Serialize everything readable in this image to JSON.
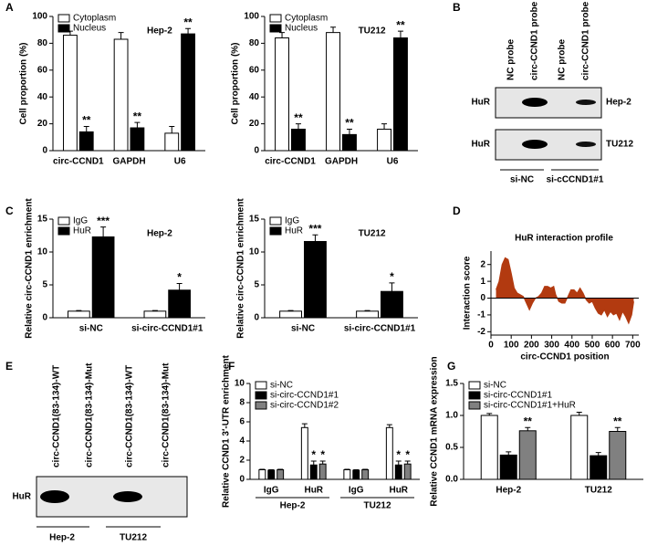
{
  "panel_labels": [
    "A",
    "B",
    "C",
    "D",
    "E",
    "F",
    "G"
  ],
  "blot_b": {
    "lanes": [
      "NC probe",
      "circ-CCND1 probe",
      "NC probe",
      "circ-CCND1 probe"
    ],
    "rows": [
      "HuR",
      "HuR"
    ],
    "cell_lines": [
      "Hep-2",
      "TU212"
    ],
    "groups": [
      "si-NC",
      "si-cCCND1#1"
    ]
  },
  "blot_e": {
    "lanes": [
      "circ-CCND1(83-134)-WT",
      "circ-CCND1(83-134)-Mut",
      "circ-CCND1(83-134)-WT",
      "circ-CCND1(83-134)-Mut"
    ],
    "rows": [
      "HuR"
    ],
    "groups": [
      "Hep-2",
      "TU212"
    ]
  },
  "chart_data": [
    {
      "type": "bar",
      "title": "Hep-2",
      "y_label": "Cell proportion (%)",
      "categories": [
        "circ-CCND1",
        "GAPDH",
        "U6"
      ],
      "series": [
        {
          "name": "Cytoplasm",
          "color": "#ffffff",
          "values": [
            86,
            83,
            13
          ],
          "errors": [
            3,
            5,
            5
          ]
        },
        {
          "name": "Nucleus",
          "color": "#000000",
          "values": [
            14,
            17,
            87
          ],
          "errors": [
            4,
            4,
            4
          ],
          "annotations": [
            "**",
            "**",
            "**"
          ]
        }
      ],
      "ylim": [
        0,
        100
      ],
      "yticks": [
        0,
        20,
        40,
        60,
        80,
        100
      ],
      "legend": "upper left"
    },
    {
      "type": "bar",
      "title": "TU212",
      "y_label": "Cell proportion (%)",
      "categories": [
        "circ-CCND1",
        "GAPDH",
        "U6"
      ],
      "series": [
        {
          "name": "Cytoplasm",
          "color": "#ffffff",
          "values": [
            84,
            88,
            16
          ],
          "errors": [
            4,
            4,
            4
          ]
        },
        {
          "name": "Nucleus",
          "color": "#000000",
          "values": [
            16,
            12,
            84
          ],
          "errors": [
            4,
            4,
            5
          ],
          "annotations": [
            "**",
            "**",
            "**"
          ]
        }
      ],
      "ylim": [
        0,
        100
      ],
      "yticks": [
        0,
        20,
        40,
        60,
        80,
        100
      ],
      "legend": "upper left"
    },
    {
      "type": "bar",
      "title": "Hep-2",
      "y_label": "Relative circ-CCND1 enrichment",
      "categories": [
        "si-NC",
        "si-circ-CCND1#1"
      ],
      "series": [
        {
          "name": "IgG",
          "color": "#ffffff",
          "values": [
            1,
            1
          ],
          "errors": [
            0.1,
            0.1
          ]
        },
        {
          "name": "HuR",
          "color": "#000000",
          "values": [
            12.3,
            4.2
          ],
          "errors": [
            1.5,
            1.0
          ],
          "annotations": [
            "***",
            "*"
          ]
        }
      ],
      "ylim": [
        0,
        15
      ],
      "yticks": [
        0,
        5,
        10,
        15
      ],
      "legend": "upper left"
    },
    {
      "type": "bar",
      "title": "TU212",
      "y_label": "Relative circ-CCND1 enrichment",
      "categories": [
        "si-NC",
        "si-circ-CCND1#1"
      ],
      "series": [
        {
          "name": "IgG",
          "color": "#ffffff",
          "values": [
            1,
            1
          ],
          "errors": [
            0.1,
            0.1
          ]
        },
        {
          "name": "HuR",
          "color": "#000000",
          "values": [
            11.6,
            4.0
          ],
          "errors": [
            1.0,
            1.3
          ],
          "annotations": [
            "***",
            "*"
          ]
        }
      ],
      "ylim": [
        0,
        15
      ],
      "yticks": [
        0,
        5,
        10,
        15
      ],
      "legend": "upper left"
    },
    {
      "type": "area",
      "title": "HuR interaction profile",
      "x_label": "circ-CCND1 position",
      "y_label": "Interaction score",
      "color": "#b23a10",
      "x": [
        25,
        40,
        55,
        70,
        85,
        100,
        115,
        130,
        145,
        160,
        175,
        190,
        205,
        220,
        235,
        250,
        265,
        280,
        295,
        310,
        320,
        335,
        350,
        365,
        380,
        395,
        410,
        425,
        440,
        455,
        470,
        485,
        500,
        515,
        530,
        545,
        560,
        575,
        590,
        605,
        620,
        635,
        650,
        665,
        680,
        695,
        705
      ],
      "values": [
        0.5,
        1.0,
        2.0,
        2.4,
        2.3,
        1.5,
        0.6,
        0.3,
        0.2,
        0.1,
        -0.3,
        -0.7,
        -0.3,
        0,
        0.1,
        0.3,
        0.7,
        0.7,
        0.6,
        0.7,
        0.2,
        -0.2,
        -0.3,
        -0.3,
        0.1,
        0.5,
        0.5,
        0.3,
        0.6,
        0.3,
        -0.1,
        -0.3,
        -0.2,
        -0.6,
        -0.9,
        -1.0,
        -0.7,
        -1.1,
        -0.8,
        -1.0,
        -0.9,
        -1.3,
        -0.8,
        -1.1,
        -1.5,
        -1.0,
        -0.2
      ],
      "xlim": [
        0,
        730
      ],
      "xticks": [
        0,
        100,
        200,
        300,
        400,
        500,
        600,
        700
      ],
      "ylim": [
        -2.2,
        2.8
      ],
      "yticks": [
        -2,
        -1,
        0,
        1,
        2
      ]
    },
    {
      "type": "bar",
      "y_label": "Relative CCND1 3′-UTR enrichment",
      "categories": [
        "IgG",
        "HuR",
        "IgG",
        "HuR"
      ],
      "groups": [
        "Hep-2",
        "TU212"
      ],
      "series": [
        {
          "name": "si-NC",
          "color": "#ffffff",
          "values": [
            1.0,
            5.4,
            1.0,
            5.4
          ],
          "errors": [
            0.05,
            0.4,
            0.05,
            0.3
          ]
        },
        {
          "name": "si-circ-CCND1#1",
          "color": "#000000",
          "values": [
            0.95,
            1.5,
            0.95,
            1.5
          ],
          "errors": [
            0.05,
            0.4,
            0.05,
            0.4
          ],
          "annotations": [
            null,
            "*",
            null,
            "*"
          ]
        },
        {
          "name": "si-circ-CCND1#2",
          "color": "#808080",
          "values": [
            1.0,
            1.6,
            1.0,
            1.6
          ],
          "errors": [
            0.05,
            0.3,
            0.05,
            0.3
          ],
          "annotations": [
            null,
            "*",
            null,
            "*"
          ]
        }
      ],
      "ylim": [
        0,
        10
      ],
      "yticks": [
        0,
        2,
        4,
        6,
        8,
        10
      ],
      "legend": "upper left"
    },
    {
      "type": "bar",
      "y_label": "Relative CCND1 mRNA expression",
      "categories": [
        "Hep-2",
        "TU212"
      ],
      "series": [
        {
          "name": "si-NC",
          "color": "#ffffff",
          "values": [
            1.0,
            1.0
          ],
          "errors": [
            0.03,
            0.05
          ]
        },
        {
          "name": "si-circ-CCND1#1",
          "color": "#000000",
          "values": [
            0.38,
            0.37
          ],
          "errors": [
            0.05,
            0.05
          ]
        },
        {
          "name": "si-circ-CCND1#1+HuR",
          "color": "#808080",
          "values": [
            0.76,
            0.75
          ],
          "errors": [
            0.05,
            0.06
          ],
          "annotations": [
            "**",
            "**"
          ]
        }
      ],
      "ylim": [
        0,
        1.5
      ],
      "yticks": [
        {
          "value": 0,
          "label": "0.0"
        },
        0.5,
        {
          "value": 1,
          "label": "1.0"
        },
        1.5
      ],
      "legend": "upper left"
    }
  ]
}
